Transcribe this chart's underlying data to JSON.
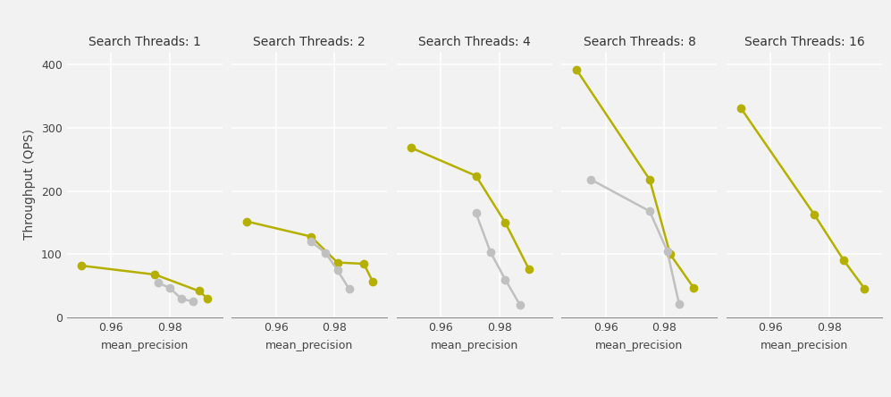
{
  "subplots": [
    {
      "title": "Search Threads: 1",
      "series": [
        {
          "color": "#b5b000",
          "x": [
            0.95,
            0.975,
            0.99,
            0.993
          ],
          "y": [
            82,
            68,
            42,
            30
          ]
        },
        {
          "color": "#c0c0c0",
          "x": [
            0.976,
            0.98,
            0.984,
            0.988
          ],
          "y": [
            55,
            47,
            30,
            25
          ]
        }
      ]
    },
    {
      "title": "Search Threads: 2",
      "series": [
        {
          "color": "#b5b000",
          "x": [
            0.95,
            0.972,
            0.981,
            0.99,
            0.993
          ],
          "y": [
            152,
            128,
            87,
            85,
            57
          ]
        },
        {
          "color": "#c0c0c0",
          "x": [
            0.972,
            0.977,
            0.981,
            0.985
          ],
          "y": [
            120,
            102,
            75,
            45
          ]
        }
      ]
    },
    {
      "title": "Search Threads: 4",
      "series": [
        {
          "color": "#b5b000",
          "x": [
            0.95,
            0.972,
            0.982,
            0.99
          ],
          "y": [
            268,
            224,
            150,
            77
          ]
        },
        {
          "color": "#c0c0c0",
          "x": [
            0.972,
            0.977,
            0.982,
            0.987
          ],
          "y": [
            165,
            103,
            60,
            20
          ]
        }
      ]
    },
    {
      "title": "Search Threads: 8",
      "series": [
        {
          "color": "#b5b000",
          "x": [
            0.95,
            0.975,
            0.982,
            0.99
          ],
          "y": [
            392,
            218,
            100,
            47
          ]
        },
        {
          "color": "#c0c0c0",
          "x": [
            0.955,
            0.975,
            0.981,
            0.985
          ],
          "y": [
            218,
            168,
            105,
            22
          ]
        }
      ]
    },
    {
      "title": "Search Threads: 16",
      "series": [
        {
          "color": "#b5b000",
          "x": [
            0.95,
            0.975,
            0.985,
            0.992
          ],
          "y": [
            330,
            162,
            90,
            46
          ]
        }
      ]
    }
  ],
  "ylabel": "Throughput (QPS)",
  "xlabel": "mean_precision",
  "ylim": [
    0,
    420
  ],
  "xlim": [
    0.945,
    0.998
  ],
  "xticks": [
    0.96,
    0.98
  ],
  "yticks": [
    0,
    100,
    200,
    300,
    400
  ],
  "background_color": "#f2f2f2",
  "grid_color": "#ffffff",
  "line_width": 1.8,
  "marker_size": 6
}
